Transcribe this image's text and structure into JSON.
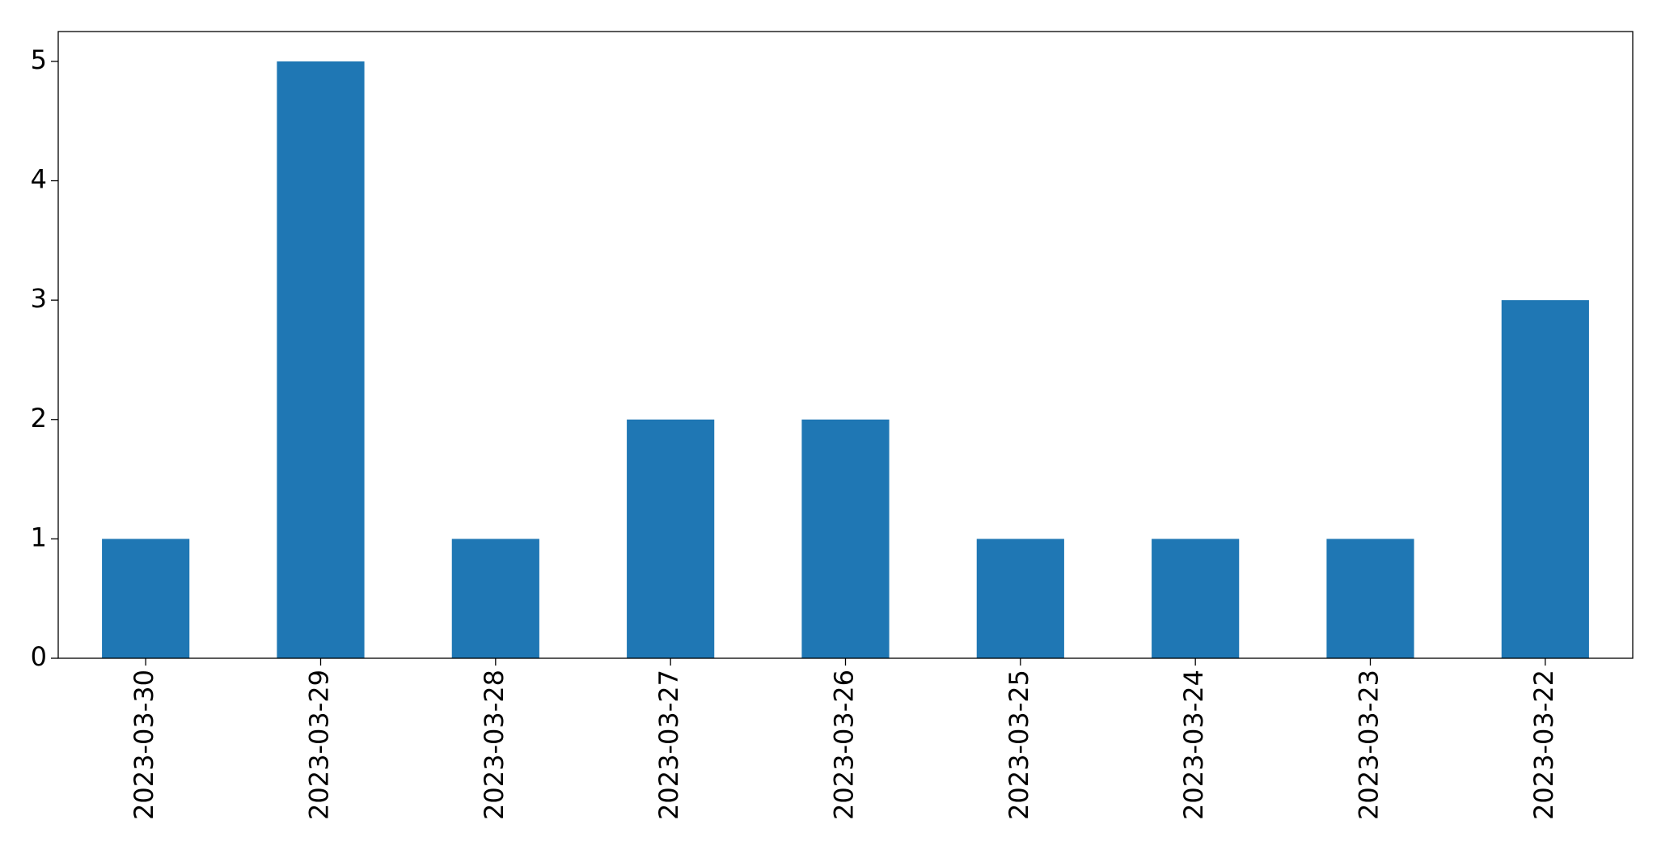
{
  "chart_data": {
    "type": "bar",
    "categories": [
      "2023-03-30",
      "2023-03-29",
      "2023-03-28",
      "2023-03-27",
      "2023-03-26",
      "2023-03-25",
      "2023-03-24",
      "2023-03-23",
      "2023-03-22"
    ],
    "values": [
      1,
      5,
      1,
      2,
      2,
      1,
      1,
      1,
      3
    ],
    "color": "#1f77b4",
    "ylim": [
      0,
      5.25
    ],
    "yticks": [
      0,
      1,
      2,
      3,
      4,
      5
    ],
    "grid": false
  }
}
